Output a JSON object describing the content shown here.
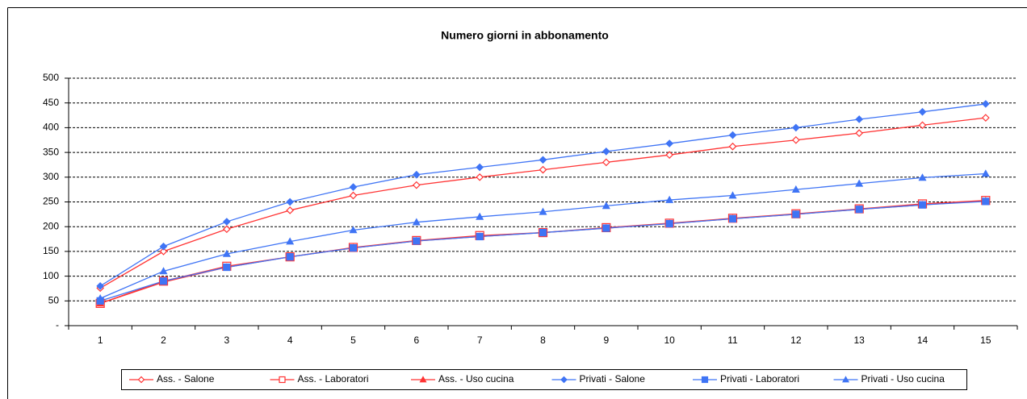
{
  "chart_data": {
    "type": "line",
    "title": "Numero giorni in abbonamento",
    "categories": [
      1,
      2,
      3,
      4,
      5,
      6,
      7,
      8,
      9,
      10,
      11,
      12,
      13,
      14,
      15
    ],
    "ylim": [
      0,
      500
    ],
    "yticks": [
      {
        "value": 0,
        "label": "-"
      },
      50,
      100,
      150,
      200,
      250,
      300,
      350,
      400,
      450,
      500
    ],
    "grid": true,
    "legend": "bottom",
    "series": [
      {
        "name": "Ass. - Salone",
        "color": "#ff3333",
        "marker": "diamond-open",
        "values": [
          76,
          150,
          195,
          233,
          263,
          284,
          300,
          315,
          330,
          345,
          362,
          375,
          389,
          405,
          420
        ]
      },
      {
        "name": "Ass. - Laboratori",
        "color": "#ff3333",
        "marker": "square-open",
        "values": [
          45,
          90,
          120,
          139,
          158,
          172,
          182,
          188,
          198,
          207,
          217,
          226,
          236,
          246,
          253
        ]
      },
      {
        "name": "Ass. - Uso cucina",
        "color": "#ff3333",
        "marker": "triangle",
        "values": [
          45,
          88,
          118,
          139,
          157,
          171,
          180,
          188,
          197,
          206,
          216,
          225,
          235,
          244,
          252
        ]
      },
      {
        "name": "Privati - Salone",
        "color": "#3f74f5",
        "marker": "diamond",
        "values": [
          80,
          160,
          210,
          250,
          280,
          305,
          320,
          335,
          352,
          368,
          385,
          400,
          417,
          432,
          448
        ]
      },
      {
        "name": "Privati - Laboratori",
        "color": "#3f74f5",
        "marker": "square",
        "values": [
          50,
          90,
          118,
          139,
          157,
          171,
          180,
          188,
          197,
          206,
          216,
          225,
          235,
          244,
          251
        ]
      },
      {
        "name": "Privati - Uso cucina",
        "color": "#3f74f5",
        "marker": "triangle",
        "values": [
          55,
          110,
          145,
          170,
          193,
          209,
          220,
          230,
          242,
          254,
          263,
          275,
          287,
          299,
          307
        ]
      }
    ]
  }
}
